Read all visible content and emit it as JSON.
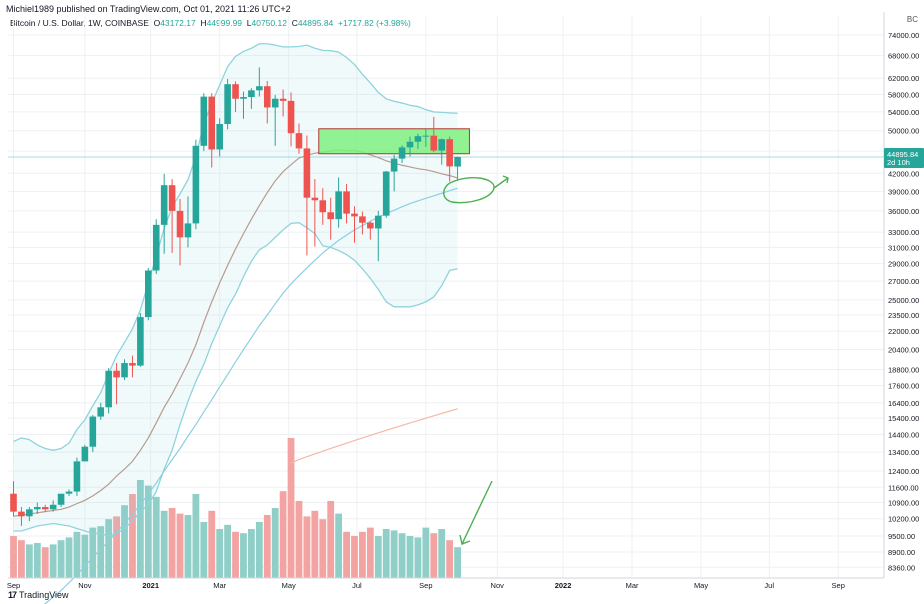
{
  "header": {
    "published": "Michiel1989 published on TradingView.com, Oct 01, 2021 11:26 UTC+2",
    "symbol": "Bitcoin / U.S. Dollar, 1W, COINBASE",
    "open_label": "O",
    "open": "43172.17",
    "high_label": "H",
    "high": "44999.99",
    "low_label": "L",
    "low": "40750.12",
    "close_label": "C",
    "close": "44895.84",
    "change": "+1717.82 (+3.98%)",
    "currency": "BC"
  },
  "price_tag": {
    "price": "44895.84",
    "countdown": "2d 10h"
  },
  "footer": {
    "brand": "TradingView"
  },
  "colors": {
    "up": "#26a69a",
    "down": "#ef5350",
    "vol_up": "#8fcfc7",
    "vol_down": "#f4a3a3",
    "band": "#8fd3dc",
    "ma_short": "#b89a8f",
    "ma_mid": "#8ccfe0",
    "ma_long": "#f6b8a3",
    "zone": "#7ff07f",
    "annotation": "#4caf50"
  },
  "chart_data": {
    "type": "candlestick",
    "title": "Bitcoin / U.S. Dollar, 1W, COINBASE",
    "y_scale": "log",
    "ylim": [
      8000,
      80000
    ],
    "y_ticks": [
      "74000.00",
      "68000.00",
      "62000.00",
      "58000.00",
      "54000.00",
      "50000.00",
      "46000.00",
      "42000.00",
      "39000.00",
      "36000.00",
      "33000.00",
      "31000.00",
      "29000.00",
      "27000.00",
      "25000.00",
      "23500.00",
      "22000.00",
      "20400.00",
      "18800.00",
      "17600.00",
      "16400.00",
      "15400.00",
      "14400.00",
      "13400.00",
      "12400.00",
      "11600.00",
      "10900.00",
      "10200.00",
      "9500.00",
      "8900.00",
      "8360.00"
    ],
    "x_ticks": [
      "Sep",
      "Nov",
      "2021",
      "Mar",
      "May",
      "Jul",
      "Sep",
      "Nov",
      "2022",
      "Mar",
      "May",
      "Jul",
      "Sep"
    ],
    "x_tick_weeks": [
      0,
      9,
      17.3,
      26,
      34.7,
      43.3,
      52,
      61,
      69.3,
      78,
      86.7,
      95.3,
      104
    ],
    "candles": [
      {
        "o": 11300,
        "h": 11900,
        "l": 10300,
        "c": 10500
      },
      {
        "o": 10500,
        "h": 10700,
        "l": 9900,
        "c": 10300
      },
      {
        "o": 10300,
        "h": 10700,
        "l": 10100,
        "c": 10600
      },
      {
        "o": 10600,
        "h": 10900,
        "l": 10400,
        "c": 10700
      },
      {
        "o": 10700,
        "h": 10800,
        "l": 10500,
        "c": 10600
      },
      {
        "o": 10600,
        "h": 11000,
        "l": 10500,
        "c": 10800
      },
      {
        "o": 10800,
        "h": 11200,
        "l": 10700,
        "c": 11300
      },
      {
        "o": 11300,
        "h": 11500,
        "l": 11200,
        "c": 11400
      },
      {
        "o": 11400,
        "h": 13100,
        "l": 11200,
        "c": 12900
      },
      {
        "o": 12900,
        "h": 13800,
        "l": 12900,
        "c": 13700
      },
      {
        "o": 13700,
        "h": 15600,
        "l": 13400,
        "c": 15500
      },
      {
        "o": 15500,
        "h": 16400,
        "l": 15300,
        "c": 16100
      },
      {
        "o": 16100,
        "h": 18900,
        "l": 15700,
        "c": 18700
      },
      {
        "o": 18700,
        "h": 19300,
        "l": 16300,
        "c": 18200
      },
      {
        "o": 18200,
        "h": 19600,
        "l": 18000,
        "c": 19300
      },
      {
        "o": 19300,
        "h": 19900,
        "l": 18200,
        "c": 19100
      },
      {
        "o": 19100,
        "h": 23700,
        "l": 19000,
        "c": 23300
      },
      {
        "o": 23300,
        "h": 28500,
        "l": 23000,
        "c": 28200
      },
      {
        "o": 28200,
        "h": 34800,
        "l": 27800,
        "c": 34000
      },
      {
        "o": 34000,
        "h": 41900,
        "l": 30200,
        "c": 40000
      },
      {
        "o": 40000,
        "h": 41000,
        "l": 30300,
        "c": 36000
      },
      {
        "o": 36000,
        "h": 37800,
        "l": 28800,
        "c": 32300
      },
      {
        "o": 32300,
        "h": 38200,
        "l": 31000,
        "c": 34200
      },
      {
        "o": 34200,
        "h": 48200,
        "l": 33400,
        "c": 47000
      },
      {
        "o": 47000,
        "h": 58300,
        "l": 46000,
        "c": 57500
      },
      {
        "o": 57500,
        "h": 58300,
        "l": 43000,
        "c": 46300
      },
      {
        "o": 46300,
        "h": 52600,
        "l": 45000,
        "c": 51400
      },
      {
        "o": 51400,
        "h": 61800,
        "l": 50300,
        "c": 60500
      },
      {
        "o": 60500,
        "h": 61200,
        "l": 54000,
        "c": 57000
      },
      {
        "o": 57000,
        "h": 58700,
        "l": 52500,
        "c": 57400
      },
      {
        "o": 57400,
        "h": 59500,
        "l": 54700,
        "c": 59000
      },
      {
        "o": 59000,
        "h": 64800,
        "l": 57500,
        "c": 60000
      },
      {
        "o": 60000,
        "h": 61300,
        "l": 51500,
        "c": 55000
      },
      {
        "o": 55000,
        "h": 57900,
        "l": 47000,
        "c": 57000
      },
      {
        "o": 57000,
        "h": 59200,
        "l": 53000,
        "c": 56500
      },
      {
        "o": 56500,
        "h": 58500,
        "l": 46900,
        "c": 49500
      },
      {
        "o": 49500,
        "h": 51500,
        "l": 45500,
        "c": 46500
      },
      {
        "o": 46500,
        "h": 49000,
        "l": 30000,
        "c": 38000
      },
      {
        "o": 38000,
        "h": 41000,
        "l": 31100,
        "c": 37600
      },
      {
        "o": 37600,
        "h": 39500,
        "l": 34000,
        "c": 35800
      },
      {
        "o": 35800,
        "h": 38000,
        "l": 32000,
        "c": 34800
      },
      {
        "o": 34800,
        "h": 41300,
        "l": 33600,
        "c": 39000
      },
      {
        "o": 39000,
        "h": 40200,
        "l": 34200,
        "c": 35600
      },
      {
        "o": 35600,
        "h": 36700,
        "l": 31600,
        "c": 35200
      },
      {
        "o": 35200,
        "h": 35900,
        "l": 32700,
        "c": 34300
      },
      {
        "o": 34300,
        "h": 34500,
        "l": 32000,
        "c": 33500
      },
      {
        "o": 33500,
        "h": 36000,
        "l": 29300,
        "c": 35300
      },
      {
        "o": 35300,
        "h": 42400,
        "l": 35000,
        "c": 42300
      },
      {
        "o": 42300,
        "h": 45300,
        "l": 39000,
        "c": 44600
      },
      {
        "o": 44600,
        "h": 47100,
        "l": 43800,
        "c": 46700
      },
      {
        "o": 46700,
        "h": 48800,
        "l": 45000,
        "c": 47800
      },
      {
        "o": 47800,
        "h": 49400,
        "l": 46400,
        "c": 48900
      },
      {
        "o": 48900,
        "h": 50500,
        "l": 46800,
        "c": 49000
      },
      {
        "o": 49000,
        "h": 52900,
        "l": 45800,
        "c": 46100
      },
      {
        "o": 46100,
        "h": 48400,
        "l": 43500,
        "c": 48300
      },
      {
        "o": 48300,
        "h": 48800,
        "l": 40600,
        "c": 43200
      },
      {
        "o": 43172.17,
        "h": 44999.99,
        "l": 40750.12,
        "c": 44895.84
      }
    ],
    "volume": [
      0.3,
      0.27,
      0.24,
      0.25,
      0.22,
      0.24,
      0.27,
      0.29,
      0.33,
      0.31,
      0.36,
      0.37,
      0.42,
      0.44,
      0.52,
      0.6,
      0.7,
      0.66,
      0.58,
      0.48,
      0.5,
      0.46,
      0.45,
      0.6,
      0.4,
      0.48,
      0.35,
      0.38,
      0.33,
      0.32,
      0.35,
      0.4,
      0.45,
      0.5,
      0.62,
      1.0,
      0.55,
      0.44,
      0.48,
      0.42,
      0.55,
      0.46,
      0.33,
      0.3,
      0.33,
      0.36,
      0.3,
      0.35,
      0.34,
      0.32,
      0.3,
      0.29,
      0.36,
      0.32,
      0.35,
      0.27,
      0.22
    ],
    "overlays": [
      {
        "type": "bollinger_upper",
        "values": [
          14000,
          14200,
          14100,
          13800,
          13600,
          13500,
          13600,
          13900,
          14700,
          15300,
          16200,
          17100,
          18500,
          19900,
          21000,
          22200,
          24000,
          26800,
          29900,
          33500,
          36600,
          38600,
          40900,
          45000,
          51500,
          55900,
          60300,
          65000,
          67800,
          69200,
          70100,
          71400,
          71400,
          71000,
          70500,
          70500,
          70600,
          71000,
          70100,
          69500,
          69400,
          69000,
          67500,
          65600,
          63000,
          60800,
          58500,
          57000,
          56400,
          56000,
          55500,
          55200,
          54500,
          54000,
          53900,
          53800,
          53700
        ]
      },
      {
        "type": "bollinger_lower",
        "values": [
          9700,
          9700,
          9800,
          9900,
          9950,
          10000,
          9950,
          9900,
          9800,
          9700,
          9600,
          9600,
          9500,
          9600,
          9800,
          10100,
          10500,
          10800,
          11400,
          12500,
          13500,
          15000,
          16500,
          17900,
          19200,
          20900,
          22500,
          24200,
          25600,
          27500,
          29300,
          30700,
          31300,
          32300,
          33300,
          34200,
          34300,
          33600,
          32800,
          31200,
          31000,
          30600,
          30100,
          29400,
          28400,
          27300,
          26100,
          24800,
          24300,
          24300,
          24300,
          24500,
          24800,
          25300,
          26500,
          28200,
          28400
        ]
      },
      {
        "type": "ma20",
        "values": [
          10300,
          10350,
          10400,
          10450,
          10500,
          10550,
          10600,
          10700,
          10850,
          11000,
          11200,
          11450,
          11750,
          12150,
          12500,
          12900,
          13500,
          14200,
          15100,
          16100,
          17000,
          18100,
          19300,
          20800,
          22800,
          24800,
          26800,
          28800,
          30800,
          32800,
          34800,
          36800,
          38800,
          40700,
          42300,
          43500,
          44700,
          45200,
          45600,
          45800,
          46000,
          46200,
          46100,
          46100,
          45800,
          45300,
          44800,
          44200,
          43800,
          43400,
          43100,
          42800,
          42600,
          42300,
          41900,
          41600,
          41200
        ]
      },
      {
        "type": "ma50",
        "values": [
          6400,
          6600,
          6800,
          7000,
          7200,
          7400,
          7600,
          7850,
          8100,
          8400,
          8700,
          9000,
          9300,
          9650,
          10000,
          10400,
          10800,
          11300,
          11800,
          12400,
          13000,
          13600,
          14300,
          15000,
          15800,
          16600,
          17500,
          18400,
          19400,
          20400,
          21400,
          22500,
          23500,
          24600,
          25700,
          26700,
          27600,
          28500,
          29400,
          30300,
          31100,
          31900,
          32600,
          33300,
          33900,
          34500,
          35100,
          35600,
          36100,
          36600,
          37100,
          37500,
          37900,
          38300,
          38700,
          39100,
          39500
        ]
      },
      {
        "type": "ma200",
        "values": [
          null,
          null,
          null,
          null,
          null,
          null,
          null,
          null,
          null,
          null,
          null,
          null,
          null,
          null,
          null,
          null,
          null,
          null,
          null,
          null,
          null,
          null,
          null,
          null,
          null,
          null,
          null,
          null,
          null,
          null,
          null,
          null,
          null,
          null,
          null,
          12800,
          13000,
          13150,
          13300,
          13450,
          13600,
          13750,
          13900,
          14050,
          14200,
          14350,
          14500,
          14650,
          14800,
          14950,
          15100,
          15250,
          15400,
          15550,
          15700,
          15850,
          16000
        ]
      }
    ],
    "zone": {
      "x_start_week": 39,
      "x_end_week": 58,
      "y_low": 45500,
      "y_high": 50400
    },
    "last_price_line": 44895.84
  }
}
